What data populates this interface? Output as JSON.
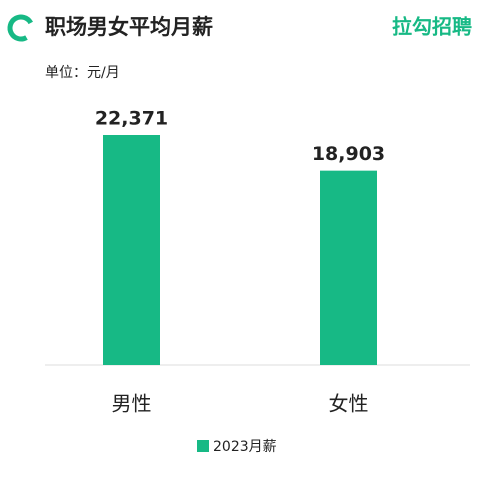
{
  "chart_data": {
    "type": "bar",
    "title": "职场男女平均月薪",
    "brand": "拉勾招聘",
    "unit": "单位：元/月",
    "categories": [
      "男性",
      "女性"
    ],
    "series": [
      {
        "name": "2023月薪",
        "color": "#17b985",
        "values": [
          22371,
          18903
        ],
        "value_labels": [
          "22,371",
          "18,903"
        ]
      }
    ]
  }
}
